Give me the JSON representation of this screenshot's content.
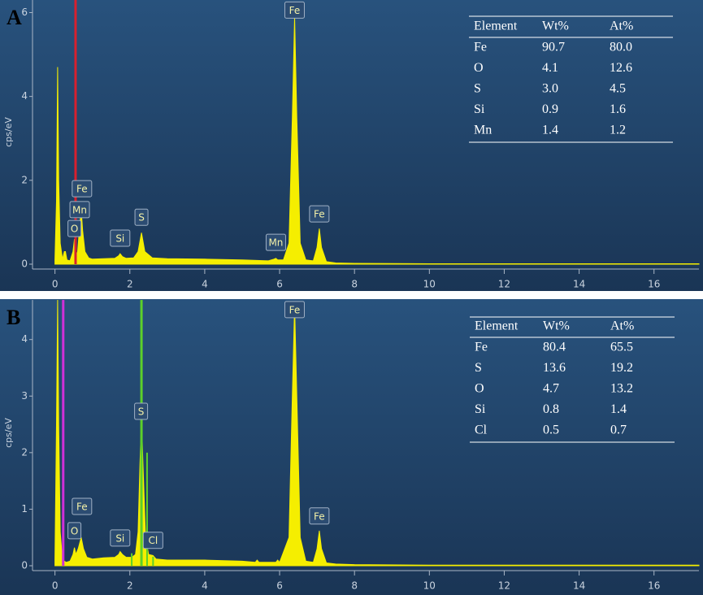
{
  "chart_data": [
    {
      "type": "line",
      "label": "A",
      "y_label": "cps/eV",
      "color": "#f5ee00",
      "x": [
        0,
        0.04,
        0.07,
        0.1,
        0.14,
        0.2,
        0.25,
        0.28,
        0.32,
        0.4,
        0.48,
        0.52,
        0.56,
        0.6,
        0.66,
        0.7,
        0.74,
        0.8,
        0.9,
        1.0,
        1.3,
        1.6,
        1.7,
        1.74,
        1.8,
        1.9,
        2.1,
        2.22,
        2.31,
        2.4,
        2.6,
        3.0,
        4.0,
        5.0,
        5.7,
        5.85,
        5.9,
        5.95,
        6.1,
        6.25,
        6.34,
        6.4,
        6.46,
        6.55,
        6.7,
        6.9,
        7.0,
        7.06,
        7.12,
        7.25,
        7.5,
        8,
        10,
        12,
        14,
        16,
        17.2
      ],
      "values": [
        0.1,
        1.5,
        4.7,
        2.0,
        0.5,
        0.12,
        0.3,
        0.3,
        0.1,
        0.08,
        0.3,
        0.6,
        0.3,
        0.25,
        0.9,
        1.3,
        0.8,
        0.3,
        0.15,
        0.12,
        0.13,
        0.14,
        0.2,
        0.25,
        0.18,
        0.14,
        0.15,
        0.3,
        0.75,
        0.3,
        0.15,
        0.13,
        0.12,
        0.1,
        0.08,
        0.12,
        0.14,
        0.1,
        0.1,
        0.5,
        3.5,
        5.9,
        3.5,
        0.5,
        0.1,
        0.08,
        0.4,
        0.85,
        0.4,
        0.06,
        0.03,
        0.02,
        0.01,
        0.01,
        0.01,
        0.01,
        0.01
      ],
      "xlim": [
        -0.6,
        17.2
      ],
      "ylim": [
        0,
        6.3
      ],
      "xticks": [
        0,
        2,
        4,
        6,
        8,
        10,
        12,
        14,
        16
      ],
      "yticks": [
        0,
        2,
        4,
        6
      ],
      "markers": [
        {
          "x": 0.55,
          "color": "#d8202e"
        }
      ],
      "annotations": [
        {
          "text": "Fe",
          "x": 6.4,
          "y": 6.06
        },
        {
          "text": "Fe",
          "x": 7.06,
          "y": 1.2
        },
        {
          "text": "S",
          "x": 2.31,
          "y": 1.12
        },
        {
          "text": "Si",
          "x": 1.74,
          "y": 0.62
        },
        {
          "text": "Mn",
          "x": 5.9,
          "y": 0.52
        },
        {
          "text": "Mn",
          "x": 0.66,
          "y": 1.3
        },
        {
          "text": "Fe",
          "x": 0.72,
          "y": 1.8
        },
        {
          "text": "O",
          "x": 0.52,
          "y": 0.85
        }
      ],
      "table": {
        "columns": [
          "Element",
          "Wt%",
          "At%"
        ],
        "rows": [
          [
            "Fe",
            "90.7",
            "80.0"
          ],
          [
            "O",
            "4.1",
            "12.6"
          ],
          [
            "S",
            "3.0",
            "4.5"
          ],
          [
            "Si",
            "0.9",
            "1.6"
          ],
          [
            "Mn",
            "1.4",
            "1.2"
          ]
        ]
      }
    },
    {
      "type": "line",
      "label": "B",
      "y_label": "cps/eV",
      "color": "#f5ee00",
      "x": [
        0,
        0.04,
        0.07,
        0.1,
        0.14,
        0.2,
        0.3,
        0.4,
        0.48,
        0.52,
        0.56,
        0.62,
        0.7,
        0.76,
        0.85,
        1.0,
        1.3,
        1.6,
        1.7,
        1.74,
        1.8,
        1.9,
        2.05,
        2.15,
        2.22,
        2.27,
        2.31,
        2.35,
        2.42,
        2.5,
        2.62,
        2.7,
        3.0,
        4.0,
        5.0,
        5.35,
        5.4,
        5.45,
        5.9,
        5.95,
        6.0,
        6.25,
        6.34,
        6.4,
        6.46,
        6.55,
        6.7,
        6.9,
        7.0,
        7.06,
        7.12,
        7.25,
        7.5,
        8.0,
        10.0,
        12,
        14,
        16,
        17.2
      ],
      "values": [
        0.1,
        2.5,
        4.7,
        2.5,
        0.6,
        0.1,
        0.06,
        0.08,
        0.2,
        0.32,
        0.2,
        0.3,
        0.5,
        0.3,
        0.15,
        0.12,
        0.14,
        0.15,
        0.2,
        0.25,
        0.2,
        0.15,
        0.15,
        0.2,
        0.6,
        1.8,
        2.6,
        1.8,
        0.5,
        0.2,
        0.18,
        0.12,
        0.1,
        0.1,
        0.08,
        0.06,
        0.1,
        0.06,
        0.06,
        0.1,
        0.06,
        0.5,
        3.0,
        4.6,
        3.0,
        0.5,
        0.08,
        0.06,
        0.3,
        0.62,
        0.3,
        0.05,
        0.03,
        0.02,
        0.01,
        0.01,
        0.01,
        0.01,
        0.01
      ],
      "xlim": [
        -0.6,
        17.2
      ],
      "ylim": [
        0,
        4.7
      ],
      "xticks": [
        0,
        2,
        4,
        6,
        8,
        10,
        12,
        14,
        16
      ],
      "yticks": [
        0,
        1,
        2,
        3,
        4
      ],
      "markers": [
        {
          "x": 0.22,
          "color": "#d030d8"
        },
        {
          "x": 2.31,
          "color": "#5cd02a"
        },
        {
          "x": 2.46,
          "y": 2.0,
          "color": "#5cd02a"
        },
        {
          "x": 2.05,
          "y": 0.22,
          "color": "#5cd02a"
        },
        {
          "x": 2.62,
          "y": 0.16,
          "color": "#5cd02a"
        }
      ],
      "annotations": [
        {
          "text": "Fe",
          "x": 6.4,
          "y": 4.53
        },
        {
          "text": "Fe",
          "x": 7.06,
          "y": 0.88
        },
        {
          "text": "S",
          "x": 2.3,
          "y": 2.73
        },
        {
          "text": "Si",
          "x": 1.74,
          "y": 0.49
        },
        {
          "text": "Cl",
          "x": 2.62,
          "y": 0.45
        },
        {
          "text": "O",
          "x": 0.52,
          "y": 0.62
        },
        {
          "text": "Fe",
          "x": 0.72,
          "y": 1.05
        }
      ],
      "table": {
        "columns": [
          "Element",
          "Wt%",
          "At%"
        ],
        "rows": [
          [
            "Fe",
            "80.4",
            "65.5"
          ],
          [
            "S",
            "13.6",
            "19.2"
          ],
          [
            "O",
            "4.7",
            "13.2"
          ],
          [
            "Si",
            "0.8",
            "1.4"
          ],
          [
            "Cl",
            "0.5",
            "0.7"
          ]
        ]
      }
    }
  ]
}
